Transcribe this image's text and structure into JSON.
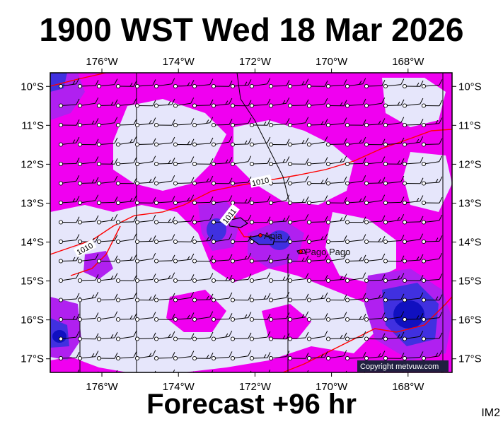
{
  "title": "1900 WST Wed 18 Mar 2026",
  "footer": "Forecast +96 hr",
  "image_code": "IM2",
  "copyright": "Copyright metvuw.com",
  "colors": {
    "background_field": "#e6e6fb",
    "magenta": "#f000f0",
    "violet": "#b020f0",
    "blue": "#4030e0",
    "deep_blue": "#1010c0",
    "isobar": "#ff0000",
    "border_line": "#000000"
  },
  "map": {
    "lon_labels": [
      "176°W",
      "174°W",
      "172°W",
      "170°W",
      "168°W"
    ],
    "lat_labels": [
      "10°S",
      "11°S",
      "12°S",
      "13°S",
      "14°S",
      "15°S",
      "16°S",
      "17°S"
    ],
    "lon_values": [
      -176,
      -174,
      -172,
      -170,
      -168
    ],
    "lat_values": [
      -10,
      -11,
      -12,
      -13,
      -14,
      -15,
      -16,
      -17
    ],
    "isobars": [
      "1010",
      "1010",
      "1011"
    ],
    "places": [
      "Apia",
      "Pago Pago"
    ]
  }
}
